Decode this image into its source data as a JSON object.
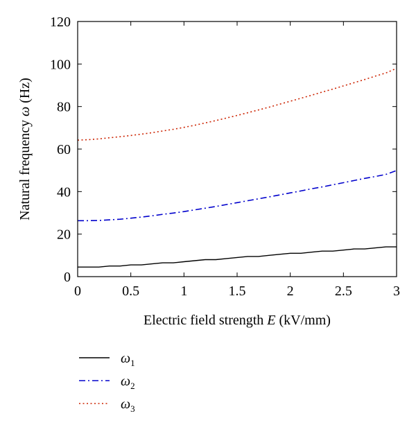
{
  "chart_data": {
    "type": "line",
    "title": "",
    "xlabel": {
      "prefix": "Electric field strength ",
      "symbol": "E",
      "unit": " (kV/mm)"
    },
    "ylabel": {
      "prefix": "Natural frequency ",
      "symbol": "ω",
      "unit": " (Hz)"
    },
    "xlim": [
      0,
      3
    ],
    "ylim": [
      0,
      120
    ],
    "x_ticks": [
      0,
      0.5,
      1,
      1.5,
      2,
      2.5,
      3
    ],
    "x_tick_labels": [
      "0",
      "0.5",
      "1",
      "1.5",
      "2",
      "2.5",
      "3"
    ],
    "y_ticks": [
      0,
      20,
      40,
      60,
      80,
      100,
      120
    ],
    "y_tick_labels": [
      "0",
      "20",
      "40",
      "60",
      "80",
      "100",
      "120"
    ],
    "grid": false,
    "legend_position": "below",
    "x": [
      0,
      0.1,
      0.2,
      0.3,
      0.4,
      0.5,
      0.6,
      0.7,
      0.8,
      0.9,
      1.0,
      1.1,
      1.2,
      1.3,
      1.4,
      1.5,
      1.6,
      1.7,
      1.8,
      1.9,
      2.0,
      2.1,
      2.2,
      2.3,
      2.4,
      2.5,
      2.6,
      2.7,
      2.8,
      2.9,
      3.0
    ],
    "series": [
      {
        "name": "ω",
        "subscript": "1",
        "color": "#000000",
        "dash": "solid",
        "values": [
          4.5,
          4.5,
          4.5,
          5.0,
          5.0,
          5.5,
          5.5,
          6.0,
          6.5,
          6.5,
          7.0,
          7.5,
          8.0,
          8.0,
          8.5,
          9.0,
          9.5,
          9.5,
          10.0,
          10.5,
          11.0,
          11.0,
          11.5,
          12.0,
          12.0,
          12.5,
          13.0,
          13.0,
          13.5,
          14.0,
          14.0
        ]
      },
      {
        "name": "ω",
        "subscript": "2",
        "color": "#0000cc",
        "dash": "dashdot",
        "values": [
          26.3,
          26.3,
          26.4,
          26.7,
          27.0,
          27.5,
          28.0,
          28.6,
          29.3,
          29.9,
          30.6,
          31.4,
          32.2,
          33.0,
          33.9,
          34.8,
          35.7,
          36.6,
          37.5,
          38.4,
          39.4,
          40.3,
          41.3,
          42.2,
          43.2,
          44.2,
          45.2,
          46.2,
          47.1,
          48.1,
          49.9
        ]
      },
      {
        "name": "ω",
        "subscript": "3",
        "color": "#cc2200",
        "dash": "dotted",
        "values": [
          64.2,
          64.4,
          64.8,
          65.3,
          65.8,
          66.4,
          67.0,
          67.7,
          68.5,
          69.3,
          70.2,
          71.2,
          72.3,
          73.4,
          74.6,
          75.8,
          77.1,
          78.4,
          79.7,
          81.1,
          82.5,
          83.9,
          85.3,
          86.8,
          88.2,
          89.7,
          91.2,
          92.7,
          94.3,
          95.8,
          98.0
        ]
      }
    ]
  }
}
